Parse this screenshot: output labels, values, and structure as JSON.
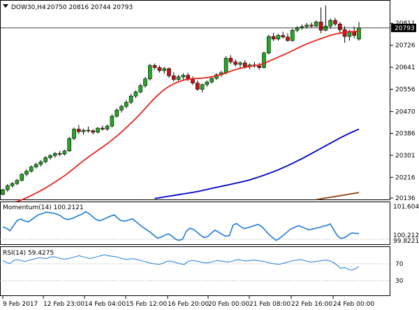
{
  "header": {
    "symbol": "DOW30,H4",
    "ohlc": "20750 20816 20744 20793"
  },
  "price_badge": "20793",
  "chart_data": [
    {
      "type": "candlestick",
      "title": "DOW30,H4 20750 20816 20744 20793",
      "ylim": [
        20136,
        20890
      ],
      "y_ticks": [
        "20811",
        "20726",
        "20641",
        "20556",
        "20470",
        "20386",
        "20301",
        "20216",
        "20136"
      ],
      "last_price": 20793,
      "x_ticks": [
        "9 Feb 2017",
        "12 Feb 23:00",
        "14 Feb 04:00",
        "15 Feb 12:00",
        "16 Feb 20:00",
        "20 Feb 00:00",
        "21 Feb 08:00",
        "22 Feb 16:00",
        "24 Feb 00:00"
      ],
      "candles": [
        [
          20150,
          20172,
          20146,
          20168
        ],
        [
          20168,
          20190,
          20160,
          20184
        ],
        [
          20184,
          20198,
          20176,
          20192
        ],
        [
          20192,
          20210,
          20186,
          20204
        ],
        [
          20204,
          20232,
          20200,
          20228
        ],
        [
          20228,
          20246,
          20220,
          20240
        ],
        [
          20240,
          20262,
          20234,
          20256
        ],
        [
          20256,
          20272,
          20250,
          20266
        ],
        [
          20266,
          20282,
          20258,
          20276
        ],
        [
          20276,
          20298,
          20270,
          20292
        ],
        [
          20292,
          20306,
          20284,
          20300
        ],
        [
          20300,
          20314,
          20292,
          20308
        ],
        [
          20308,
          20318,
          20298,
          20306
        ],
        [
          20306,
          20322,
          20300,
          20318
        ],
        [
          20318,
          20372,
          20314,
          20366
        ],
        [
          20366,
          20408,
          20360,
          20402
        ],
        [
          20402,
          20418,
          20384,
          20392
        ],
        [
          20392,
          20404,
          20380,
          20398
        ],
        [
          20398,
          20412,
          20388,
          20396
        ],
        [
          20396,
          20402,
          20382,
          20390
        ],
        [
          20390,
          20410,
          20386,
          20406
        ],
        [
          20406,
          20416,
          20396,
          20402
        ],
        [
          20402,
          20420,
          20396,
          20414
        ],
        [
          20414,
          20460,
          20408,
          20452
        ],
        [
          20452,
          20482,
          20446,
          20476
        ],
        [
          20476,
          20496,
          20466,
          20490
        ],
        [
          20490,
          20514,
          20482,
          20506
        ],
        [
          20506,
          20538,
          20498,
          20530
        ],
        [
          20530,
          20552,
          20522,
          20546
        ],
        [
          20546,
          20578,
          20540,
          20570
        ],
        [
          20570,
          20604,
          20562,
          20596
        ],
        [
          20596,
          20654,
          20590,
          20648
        ],
        [
          20648,
          20656,
          20632,
          20640
        ],
        [
          20640,
          20648,
          20620,
          20628
        ],
        [
          20628,
          20642,
          20616,
          20636
        ],
        [
          20636,
          20640,
          20600,
          20608
        ],
        [
          20608,
          20622,
          20586,
          20594
        ],
        [
          20594,
          20612,
          20588,
          20604
        ],
        [
          20604,
          20618,
          20594,
          20610
        ],
        [
          20610,
          20620,
          20588,
          20596
        ],
        [
          20596,
          20606,
          20572,
          20580
        ],
        [
          20580,
          20590,
          20550,
          20556
        ],
        [
          20556,
          20578,
          20544,
          20574
        ],
        [
          20574,
          20590,
          20566,
          20584
        ],
        [
          20584,
          20604,
          20578,
          20598
        ],
        [
          20598,
          20618,
          20592,
          20612
        ],
        [
          20612,
          20628,
          20604,
          20620
        ],
        [
          20620,
          20684,
          20614,
          20676
        ],
        [
          20676,
          20688,
          20654,
          20662
        ],
        [
          20662,
          20672,
          20644,
          20652
        ],
        [
          20652,
          20664,
          20640,
          20658
        ],
        [
          20658,
          20668,
          20636,
          20644
        ],
        [
          20644,
          20656,
          20634,
          20650
        ],
        [
          20650,
          20662,
          20640,
          20646
        ],
        [
          20646,
          20658,
          20632,
          20640
        ],
        [
          20640,
          20702,
          20636,
          20696
        ],
        [
          20696,
          20766,
          20690,
          20760
        ],
        [
          20760,
          20774,
          20742,
          20750
        ],
        [
          20750,
          20770,
          20744,
          20764
        ],
        [
          20764,
          20778,
          20752,
          20758
        ],
        [
          20758,
          20772,
          20740,
          20744
        ],
        [
          20744,
          20790,
          20740,
          20784
        ],
        [
          20784,
          20800,
          20776,
          20794
        ],
        [
          20794,
          20806,
          20786,
          20798
        ],
        [
          20798,
          20812,
          20790,
          20804
        ],
        [
          20804,
          20814,
          20794,
          20800
        ],
        [
          20800,
          20822,
          20796,
          20816
        ],
        [
          20816,
          20872,
          20772,
          20784
        ],
        [
          20784,
          20880,
          20780,
          20800
        ],
        [
          20800,
          20830,
          20790,
          20822
        ],
        [
          20822,
          20832,
          20800,
          20808
        ],
        [
          20808,
          20816,
          20770,
          20786
        ],
        [
          20786,
          20800,
          20736,
          20760
        ],
        [
          20760,
          20786,
          20744,
          20780
        ],
        [
          20780,
          20798,
          20754,
          20764
        ],
        [
          20750,
          20816,
          20744,
          20793
        ]
      ],
      "series": [
        {
          "name": "",
          "color": "#e8221c",
          "values": [
            20108,
            20112,
            20117,
            20122,
            20129,
            20137,
            20146,
            20155,
            20165,
            20175,
            20186,
            20198,
            20210,
            20222,
            20236,
            20251,
            20266,
            20280,
            20294,
            20307,
            20320,
            20333,
            20346,
            20360,
            20375,
            20391,
            20408,
            20425,
            20443,
            20462,
            20482,
            20503,
            20522,
            20539,
            20555,
            20567,
            20577,
            20585,
            20591,
            20595,
            20597,
            20598,
            20599,
            20601,
            20604,
            20608,
            20613,
            20619,
            20626,
            20632,
            20637,
            20641,
            20644,
            20647,
            20650,
            20656,
            20664,
            20672,
            20680,
            20688,
            20696,
            20705,
            20714,
            20723,
            20731,
            20738,
            20745,
            20752,
            20758,
            20764,
            20769,
            20773,
            20776,
            20778,
            20779,
            20781
          ]
        },
        {
          "name": "",
          "color": "#0000cc",
          "values": [
            null,
            null,
            null,
            null,
            null,
            null,
            null,
            null,
            null,
            null,
            null,
            null,
            null,
            null,
            null,
            null,
            null,
            null,
            null,
            null,
            null,
            null,
            null,
            null,
            null,
            null,
            null,
            null,
            null,
            null,
            null,
            null,
            20134,
            20137,
            20140,
            20143,
            20146,
            20149,
            20152,
            20155,
            20158,
            20161,
            20165,
            20169,
            20173,
            20177,
            20181,
            20185,
            20189,
            20193,
            20197,
            20201,
            20206,
            20212,
            20218,
            20224,
            20231,
            20238,
            20245,
            20253,
            20261,
            20270,
            20279,
            20288,
            20298,
            20308,
            20318,
            20328,
            20338,
            20348,
            20358,
            20368,
            20377,
            20386,
            20394,
            20402
          ]
        },
        {
          "name": "",
          "color": "#8b4513",
          "values": [
            null,
            null,
            null,
            null,
            null,
            null,
            null,
            null,
            null,
            null,
            null,
            null,
            null,
            null,
            null,
            null,
            null,
            null,
            null,
            null,
            null,
            null,
            null,
            null,
            null,
            null,
            null,
            null,
            null,
            null,
            null,
            null,
            null,
            null,
            null,
            null,
            null,
            null,
            null,
            null,
            null,
            null,
            null,
            null,
            null,
            null,
            null,
            null,
            null,
            null,
            null,
            null,
            null,
            null,
            null,
            null,
            null,
            null,
            null,
            null,
            null,
            null,
            null,
            null,
            null,
            null,
            20130,
            20133,
            20136,
            20139,
            20142,
            20145,
            20148,
            20151,
            20154,
            20157
          ]
        }
      ]
    },
    {
      "type": "line",
      "title": "Momentum(14) 100.2121",
      "y_ticks": [
        "101.6046",
        "99.8221"
      ],
      "ylim": [
        99.7,
        101.7
      ],
      "color": "#1f7ad6",
      "values": [
        100.55,
        100.48,
        100.35,
        100.62,
        100.88,
        100.95,
        100.86,
        100.8,
        100.92,
        101.05,
        101.18,
        101.22,
        101.3,
        101.28,
        101.25,
        101.2,
        101.12,
        100.98,
        100.92,
        100.96,
        101.04,
        101.12,
        101.2,
        101.32,
        101.22,
        101.06,
        100.92,
        100.86,
        100.94,
        101.02,
        101.1,
        101.16,
        100.98,
        100.86,
        100.84,
        100.9,
        100.96,
        100.82,
        100.66,
        100.52,
        100.4,
        100.28,
        100.12,
        99.98,
        100.02,
        100.12,
        100.2,
        100.08,
        99.92,
        99.86,
        99.92,
        100.32,
        100.48,
        100.42,
        100.28,
        100.12,
        100.0,
        100.06,
        100.24,
        100.38,
        100.28,
        100.16,
        100.08,
        100.1,
        100.64,
        100.72,
        100.58,
        100.46,
        100.5,
        100.56,
        100.62,
        100.68,
        100.56,
        100.36,
        100.16,
        100.0,
        99.86,
        99.98,
        100.12,
        100.28,
        100.44,
        100.52,
        100.6,
        100.56,
        100.48,
        100.4,
        100.44,
        100.48,
        100.52,
        100.58,
        100.62,
        100.7,
        100.4,
        100.1,
        99.96,
        100.0,
        100.12,
        100.24,
        100.22,
        100.21
      ]
    },
    {
      "type": "line",
      "title": "RSI(14) 59.4275",
      "y_ticks": [
        "70",
        "30"
      ],
      "ylim": [
        0,
        100
      ],
      "color": "#1f7ad6",
      "values": [
        72,
        68,
        66,
        72,
        74,
        72,
        70,
        72,
        74,
        76,
        78,
        77,
        76,
        79,
        80,
        78,
        76,
        75,
        76,
        78,
        80,
        82,
        80,
        78,
        76,
        78,
        80,
        82,
        84,
        82,
        81,
        80,
        78,
        76,
        74,
        75,
        76,
        74,
        72,
        70,
        68,
        66,
        65,
        64,
        66,
        70,
        71,
        69,
        67,
        65,
        64,
        70,
        72,
        71,
        70,
        68,
        67,
        68,
        70,
        72,
        71,
        70,
        69,
        70,
        73,
        74,
        72,
        71,
        72,
        73,
        72,
        71,
        70,
        68,
        66,
        65,
        64,
        66,
        68,
        70,
        72,
        73,
        74,
        72,
        70,
        69,
        70,
        71,
        72,
        73,
        71,
        68,
        62,
        56,
        58,
        54,
        52,
        55,
        59.4
      ]
    }
  ]
}
